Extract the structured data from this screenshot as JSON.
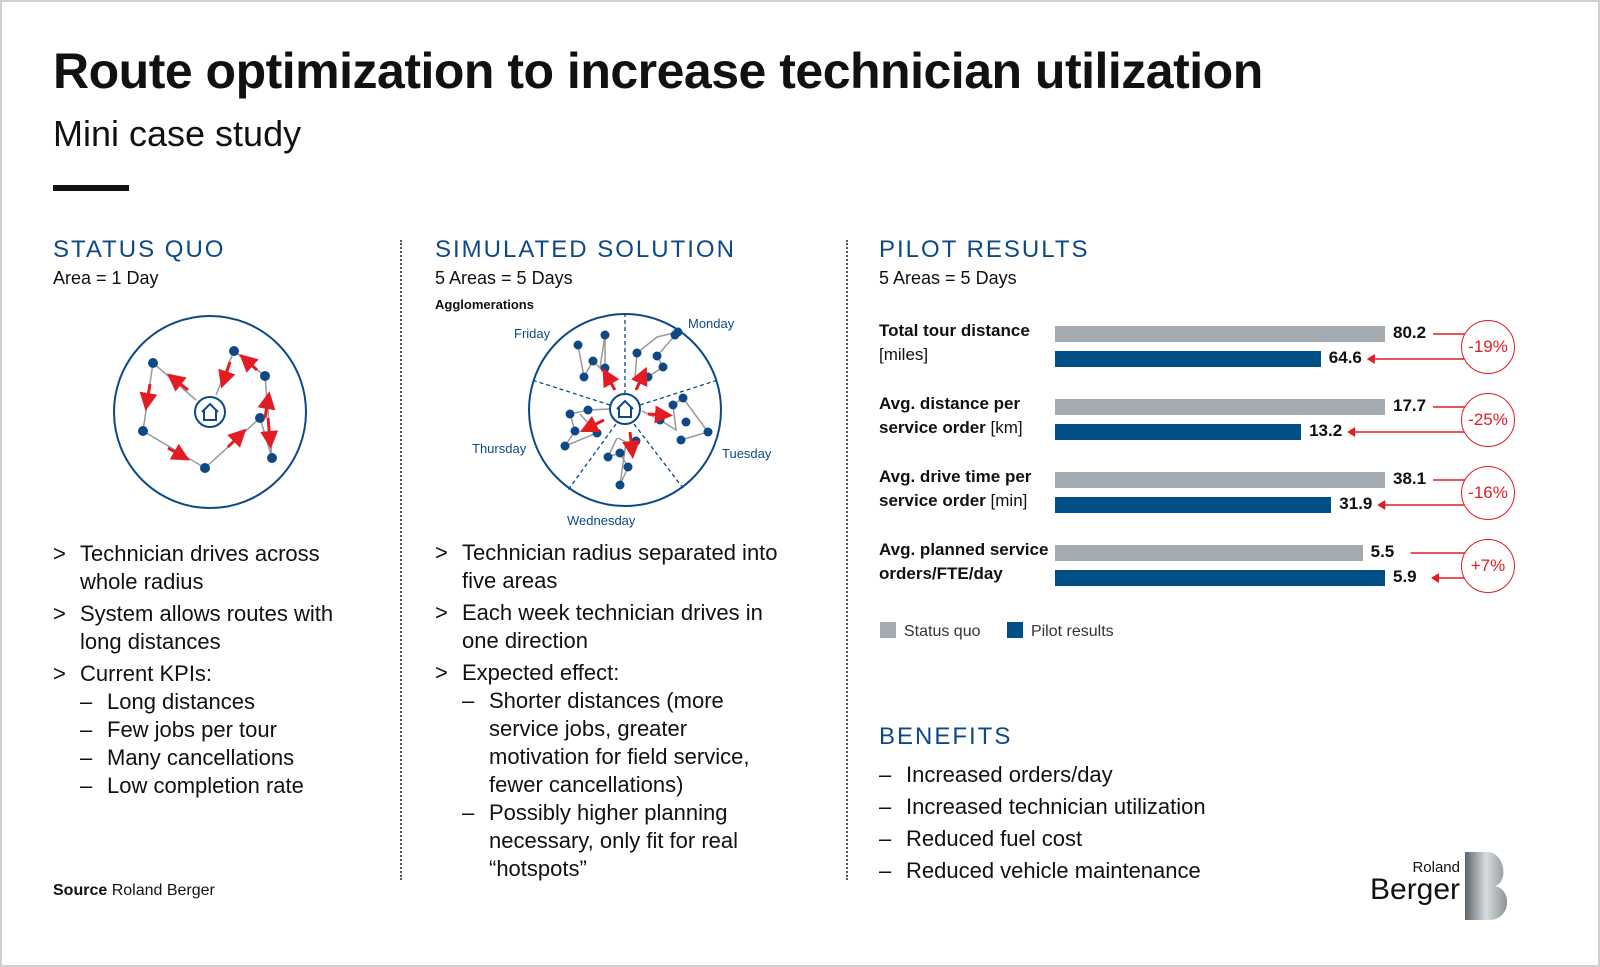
{
  "title": "Route optimization to increase technician utilization",
  "subtitle": "Mini case study",
  "status_quo": {
    "heading": "STATUS QUO",
    "sub": "Area = 1 Day",
    "bullets": [
      {
        "text": "Technician drives across whole radius"
      },
      {
        "text": "System allows routes with long distances"
      },
      {
        "text": "Current KPIs:",
        "subs": [
          "Long distances",
          "Few jobs per tour",
          "Many cancellations",
          "Low completion rate"
        ]
      }
    ]
  },
  "simulated": {
    "heading": "SIMULATED SOLUTION",
    "sub": "5 Areas = 5 Days",
    "diagram_label": "Agglomerations",
    "days": [
      "Monday",
      "Tuesday",
      "Wednesday",
      "Thursday",
      "Friday"
    ],
    "bullets": [
      {
        "text": "Technician radius separated into five areas"
      },
      {
        "text": "Each week technician drives in one direction"
      },
      {
        "text": "Expected effect:",
        "subs": [
          "Shorter distances (more service jobs, greater motivation for field service, fewer cancellations)",
          "Possibly higher planning necessary, only fit for real “hotspots”"
        ]
      }
    ]
  },
  "pilot": {
    "heading": "PILOT RESULTS",
    "sub": "5 Areas = 5 Days"
  },
  "chart_data": {
    "type": "bar",
    "series": [
      {
        "name": "Status quo",
        "color": "#a3abb1"
      },
      {
        "name": "Pilot results",
        "color": "#005087"
      }
    ],
    "rows": [
      {
        "label": "Total tour distance",
        "unit": "[miles]",
        "status_quo": 80.2,
        "pilot": 64.6,
        "change": "-19%"
      },
      {
        "label": "Avg. distance per service order",
        "unit": "[km]",
        "status_quo": 17.7,
        "pilot": 13.2,
        "change": "-25%"
      },
      {
        "label": "Avg. drive time per service order",
        "unit": "[min]",
        "status_quo": 38.1,
        "pilot": 31.9,
        "change": "-16%"
      },
      {
        "label": "Avg. planned service orders/FTE/day",
        "unit": "",
        "status_quo": 5.5,
        "pilot": 5.9,
        "change": "+7%"
      }
    ],
    "legend": [
      "Status quo",
      "Pilot results"
    ]
  },
  "benefits": {
    "heading": "BENEFITS",
    "items": [
      "Increased orders/day",
      "Increased technician utilization",
      "Reduced fuel cost",
      "Reduced vehicle maintenance"
    ]
  },
  "source": {
    "label": "Source",
    "text": "Roland Berger"
  },
  "logo": {
    "line1": "Roland",
    "line2": "Berger"
  }
}
